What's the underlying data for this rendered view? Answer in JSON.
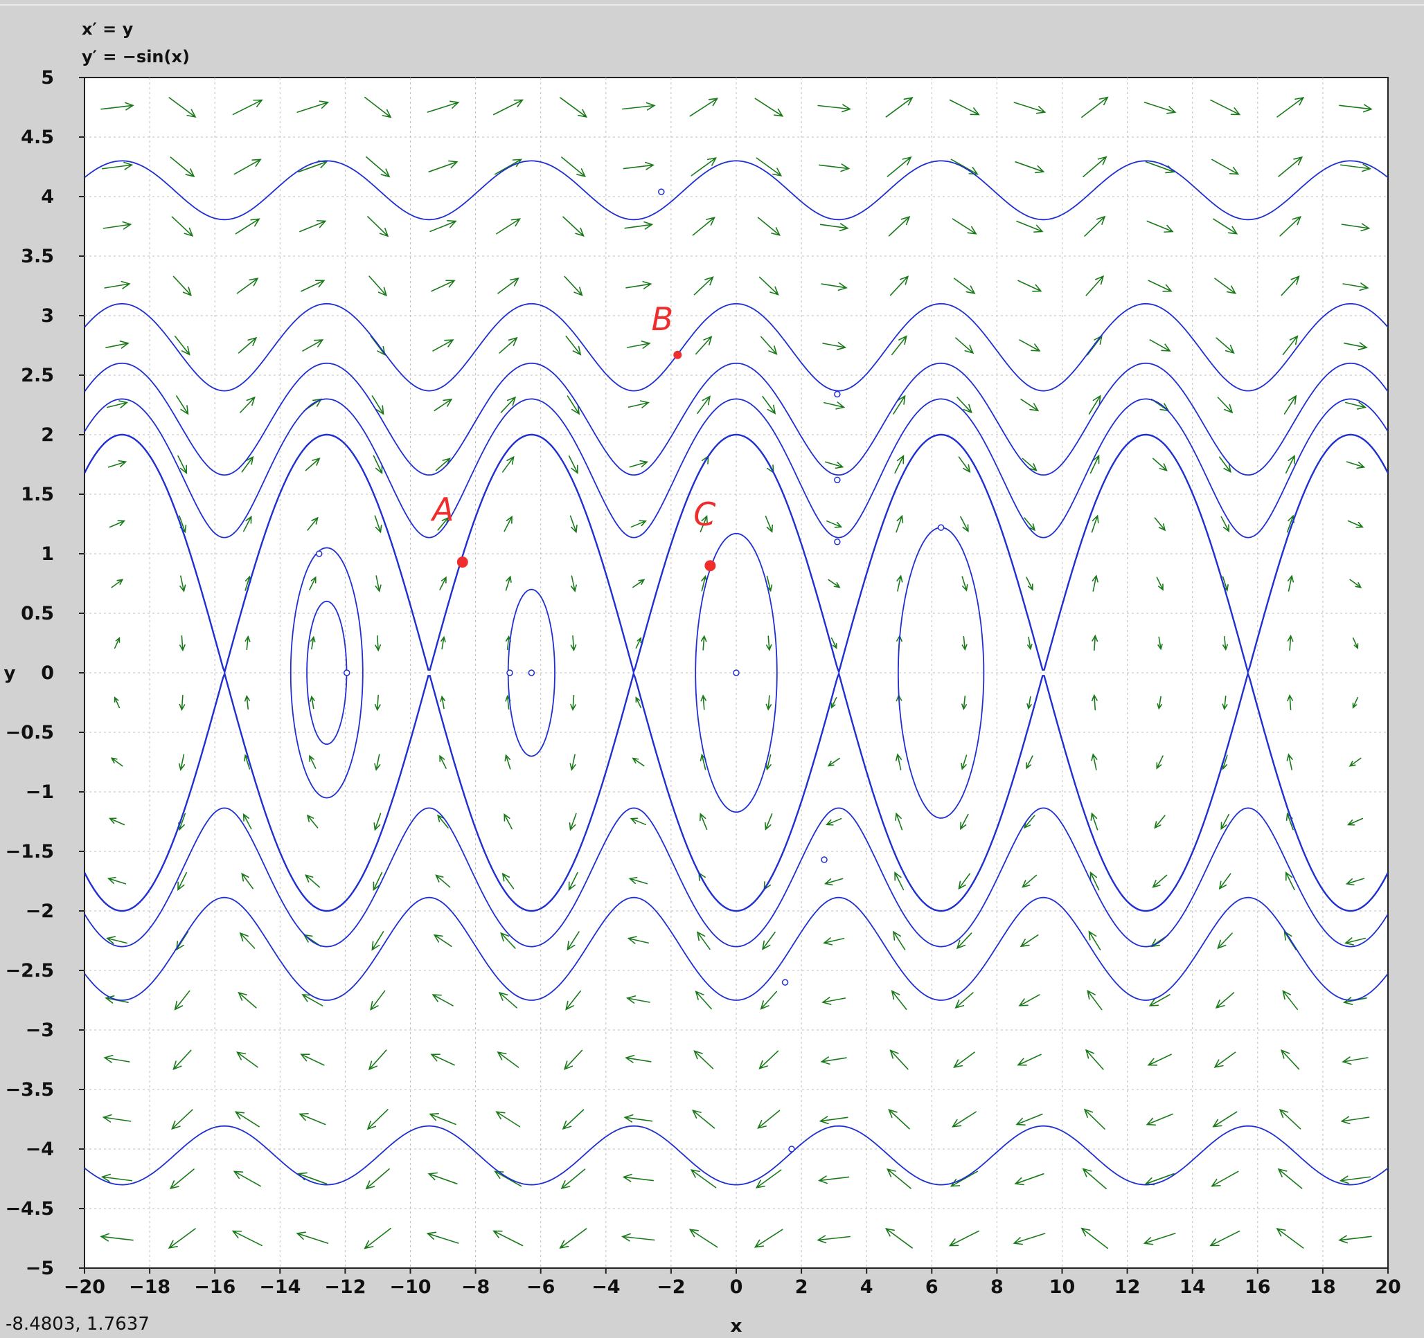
{
  "equations": {
    "line1": "x′ = y",
    "line2": "y′ = −sin(x)"
  },
  "status": {
    "cursor_readout": "-8.4803,  1.7637"
  },
  "colors": {
    "background": "#d2d2d2",
    "plot_bg": "#ffffff",
    "field_arrow": "#1a7a1a",
    "trajectory": "#1f2fd0",
    "annotation": "#f02d2d",
    "grid": "#bfbfbf"
  },
  "chart_data": {
    "type": "phase-portrait",
    "system": {
      "dx": "y",
      "dy": "-sin(x)"
    },
    "xlabel": "x",
    "ylabel": "y",
    "xlim": [
      -20,
      20
    ],
    "ylim": [
      -5,
      5
    ],
    "x_ticks": [
      -20,
      -18,
      -16,
      -14,
      -12,
      -10,
      -8,
      -6,
      -4,
      -2,
      0,
      2,
      4,
      6,
      8,
      10,
      12,
      14,
      16,
      18,
      20
    ],
    "y_ticks": [
      -5,
      -4.5,
      -4,
      -3.5,
      -3,
      -2.5,
      -2,
      -1.5,
      -1,
      -0.5,
      0,
      0.5,
      1,
      1.5,
      2,
      2.5,
      3,
      3.5,
      4,
      4.5,
      5
    ],
    "grid": true,
    "vector_field": {
      "nx": 20,
      "ny": 20
    },
    "trajectories": [
      {
        "kind": "rotation",
        "y_at_x0": 4.3,
        "direction": 1,
        "marker": [
          -2.3,
          4.04
        ]
      },
      {
        "kind": "rotation",
        "y_at_x0": 3.1,
        "direction": 1,
        "marker": [
          3.1,
          2.34
        ]
      },
      {
        "kind": "rotation",
        "y_at_x0": 2.6,
        "direction": 1,
        "marker": [
          3.1,
          1.62
        ]
      },
      {
        "kind": "rotation",
        "y_at_x0": 2.3,
        "direction": 1,
        "marker": [
          3.1,
          1.1
        ]
      },
      {
        "kind": "separatrix",
        "y_at_x0": 2.0,
        "direction": 1
      },
      {
        "kind": "separatrix",
        "y_at_x0": 2.0,
        "direction": -1
      },
      {
        "kind": "rotation",
        "y_at_x0": 2.3,
        "direction": -1,
        "marker": [
          2.7,
          -1.57
        ]
      },
      {
        "kind": "rotation",
        "y_at_x0": 2.75,
        "direction": -1,
        "marker": [
          1.5,
          -2.6
        ]
      },
      {
        "kind": "rotation",
        "y_at_x0": 4.3,
        "direction": -1,
        "marker": [
          1.7,
          -4.0
        ]
      },
      {
        "kind": "libration",
        "center": -12.566,
        "y_max": 1.05,
        "marker": [
          -12.8,
          1.0
        ]
      },
      {
        "kind": "libration",
        "center": -12.566,
        "y_max": 0.6,
        "marker": [
          -11.95,
          0.0
        ]
      },
      {
        "kind": "libration",
        "center": -6.283,
        "y_max": 0.7,
        "marker": [
          -6.283,
          0.0
        ]
      },
      {
        "kind": "libration",
        "center": 0,
        "y_max": 1.17,
        "marker": [
          0,
          0
        ]
      },
      {
        "kind": "libration",
        "center": 6.283,
        "y_max": 1.22,
        "marker": [
          6.283,
          1.22
        ]
      }
    ],
    "equilibrium_markers": [
      [
        -6.95,
        0
      ]
    ],
    "annotations": [
      {
        "label": "A",
        "x": -8.4,
        "y": 0.93
      },
      {
        "label": "B",
        "x": -1.8,
        "y": 2.67
      },
      {
        "label": "C",
        "x": -0.8,
        "y": 0.9
      }
    ]
  }
}
